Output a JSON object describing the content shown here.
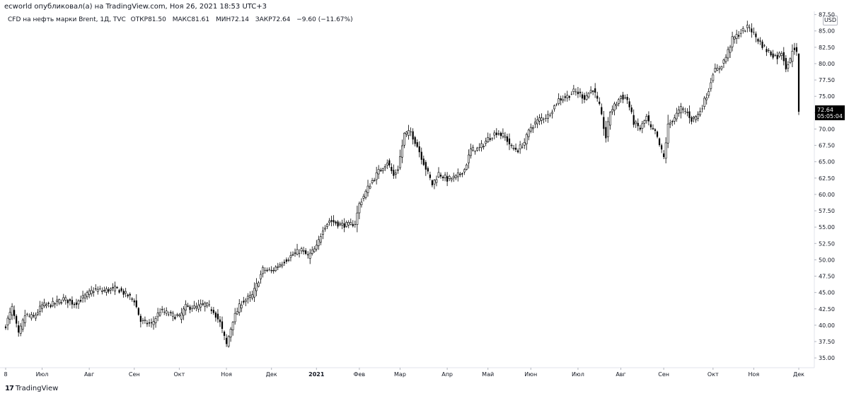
{
  "header": {
    "publish_line": "ecworld опубликовал(а) на TradingView.com, Ноя 26, 2021 18:53 UTC+3",
    "symbol_line": "CFD на нефть марки Brent, 1Д, TVC",
    "open_label": "ОТКР",
    "open_value": "81.50",
    "high_label": "МАКС",
    "high_value": "81.61",
    "low_label": "МИН",
    "low_value": "72.14",
    "close_label": "ЗАКР",
    "close_value": "72.64",
    "change_value": "−9.60 (−11.67%)"
  },
  "currency_button": "USD",
  "footer": {
    "logo_mark": "17",
    "brand": "TradingView"
  },
  "price_label": {
    "price": "72.64",
    "countdown": "05:05:04",
    "background": "#000000"
  },
  "colors": {
    "candle": "#000000",
    "axis": "#e0e3eb",
    "background": "#ffffff"
  },
  "chart_data": {
    "type": "candlestick",
    "title": "",
    "xlabel": "",
    "ylabel": "",
    "ylim": [
      33.5,
      88.0
    ],
    "y_axis_position": "right",
    "y_ticks": [
      "35.00",
      "37.50",
      "40.00",
      "42.50",
      "45.00",
      "47.50",
      "50.00",
      "52.50",
      "55.00",
      "57.50",
      "60.00",
      "62.50",
      "65.00",
      "67.50",
      "70.00",
      "72.50",
      "75.00",
      "77.50",
      "80.00",
      "82.50",
      "85.00",
      "87.50"
    ],
    "x_ticks": [
      {
        "label": "8",
        "index": 0
      },
      {
        "label": "Июл",
        "index": 17
      },
      {
        "label": "Авг",
        "index": 39
      },
      {
        "label": "Сен",
        "index": 60
      },
      {
        "label": "Окт",
        "index": 81
      },
      {
        "label": "Ноя",
        "index": 103
      },
      {
        "label": "Дек",
        "index": 124
      },
      {
        "label": "2021",
        "index": 145,
        "bold": true
      },
      {
        "label": "Фев",
        "index": 165
      },
      {
        "label": "Мар",
        "index": 184
      },
      {
        "label": "Апр",
        "index": 206
      },
      {
        "label": "Май",
        "index": 225
      },
      {
        "label": "Июн",
        "index": 245
      },
      {
        "label": "Июл",
        "index": 267
      },
      {
        "label": "Авг",
        "index": 287
      },
      {
        "label": "Сен",
        "index": 307
      },
      {
        "label": "Окт",
        "index": 330
      },
      {
        "label": "Ноя",
        "index": 349
      },
      {
        "label": "Дек",
        "index": 370
      }
    ],
    "grid": false,
    "legend": "none",
    "close_anchors": [
      [
        0,
        40.0
      ],
      [
        3,
        42.6
      ],
      [
        6,
        38.5
      ],
      [
        9,
        41.5
      ],
      [
        13,
        41.2
      ],
      [
        17,
        43.0
      ],
      [
        22,
        43.2
      ],
      [
        27,
        44.0
      ],
      [
        32,
        43.3
      ],
      [
        37,
        44.4
      ],
      [
        41,
        45.4
      ],
      [
        46,
        45.3
      ],
      [
        52,
        45.6
      ],
      [
        57,
        44.5
      ],
      [
        60,
        43.8
      ],
      [
        63,
        40.6
      ],
      [
        68,
        40.1
      ],
      [
        72,
        42.2
      ],
      [
        77,
        41.6
      ],
      [
        81,
        41.2
      ],
      [
        84,
        42.8
      ],
      [
        89,
        42.7
      ],
      [
        93,
        43.2
      ],
      [
        97,
        42.2
      ],
      [
        100,
        40.3
      ],
      [
        103,
        37.0
      ],
      [
        106,
        40.8
      ],
      [
        110,
        43.5
      ],
      [
        115,
        44.5
      ],
      [
        120,
        48.5
      ],
      [
        124,
        48.3
      ],
      [
        129,
        49.6
      ],
      [
        134,
        50.8
      ],
      [
        138,
        51.5
      ],
      [
        141,
        50.5
      ],
      [
        145,
        51.9
      ],
      [
        148,
        54.8
      ],
      [
        151,
        56.0
      ],
      [
        156,
        55.4
      ],
      [
        160,
        55.3
      ],
      [
        163,
        55.6
      ],
      [
        165,
        58.5
      ],
      [
        170,
        61.6
      ],
      [
        174,
        63.5
      ],
      [
        178,
        65.0
      ],
      [
        181,
        62.8
      ],
      [
        183,
        64.0
      ],
      [
        186,
        69.2
      ],
      [
        189,
        69.5
      ],
      [
        192,
        67.4
      ],
      [
        196,
        64.0
      ],
      [
        199,
        61.5
      ],
      [
        202,
        63.2
      ],
      [
        206,
        62.3
      ],
      [
        210,
        62.6
      ],
      [
        214,
        63.8
      ],
      [
        217,
        66.8
      ],
      [
        221,
        67.0
      ],
      [
        225,
        68.5
      ],
      [
        229,
        69.5
      ],
      [
        233,
        68.8
      ],
      [
        236,
        67.2
      ],
      [
        239,
        66.8
      ],
      [
        242,
        68.0
      ],
      [
        245,
        70.3
      ],
      [
        249,
        71.5
      ],
      [
        253,
        72.0
      ],
      [
        258,
        74.5
      ],
      [
        262,
        75.0
      ],
      [
        265,
        75.7
      ],
      [
        267,
        75.5
      ],
      [
        270,
        74.8
      ],
      [
        274,
        76.2
      ],
      [
        277,
        73.4
      ],
      [
        280,
        68.7
      ],
      [
        282,
        72.7
      ],
      [
        284,
        73.5
      ],
      [
        287,
        75.0
      ],
      [
        290,
        74.5
      ],
      [
        293,
        71.0
      ],
      [
        296,
        70.0
      ],
      [
        299,
        71.8
      ],
      [
        301,
        70.0
      ],
      [
        303,
        69.5
      ],
      [
        305,
        67.5
      ],
      [
        307,
        65.6
      ],
      [
        309,
        70.5
      ],
      [
        312,
        71.8
      ],
      [
        315,
        73.1
      ],
      [
        318,
        72.5
      ],
      [
        320,
        71.4
      ],
      [
        323,
        72.2
      ],
      [
        325,
        73.5
      ],
      [
        328,
        76.0
      ],
      [
        330,
        78.7
      ],
      [
        333,
        79.3
      ],
      [
        336,
        81.0
      ],
      [
        339,
        83.7
      ],
      [
        342,
        84.5
      ],
      [
        345,
        85.3
      ],
      [
        347,
        85.6
      ],
      [
        349,
        84.5
      ],
      [
        352,
        83.2
      ],
      [
        355,
        82.0
      ],
      [
        357,
        81.5
      ],
      [
        360,
        81.0
      ],
      [
        362,
        81.8
      ],
      [
        364,
        79.5
      ],
      [
        366,
        80.5
      ],
      [
        367,
        82.2
      ],
      [
        368,
        82.4
      ],
      [
        369,
        81.5
      ],
      [
        370,
        72.64
      ]
    ],
    "last_candle": {
      "open": 81.5,
      "high": 81.61,
      "low": 72.14,
      "close": 72.64
    },
    "candle_count": 371
  }
}
